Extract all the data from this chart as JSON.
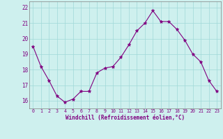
{
  "x": [
    0,
    1,
    2,
    3,
    4,
    5,
    6,
    7,
    8,
    9,
    10,
    11,
    12,
    13,
    14,
    15,
    16,
    17,
    18,
    19,
    20,
    21,
    22,
    23
  ],
  "y": [
    19.5,
    18.2,
    17.3,
    16.3,
    15.9,
    16.1,
    16.6,
    16.6,
    17.8,
    18.1,
    18.2,
    18.8,
    19.6,
    20.5,
    21.0,
    21.8,
    21.1,
    21.1,
    20.6,
    19.9,
    19.0,
    18.5,
    17.3,
    16.6
  ],
  "line_color": "#800080",
  "marker": "*",
  "marker_size": 3.5,
  "bg_color": "#cef0ee",
  "grid_color": "#a0d8d8",
  "xlabel": "Windchill (Refroidissement éolien,°C)",
  "tick_color": "#800080",
  "ylim": [
    15.5,
    22.4
  ],
  "yticks": [
    16,
    17,
    18,
    19,
    20,
    21,
    22
  ],
  "xticks": [
    0,
    1,
    2,
    3,
    4,
    5,
    6,
    7,
    8,
    9,
    10,
    11,
    12,
    13,
    14,
    15,
    16,
    17,
    18,
    19,
    20,
    21,
    22,
    23
  ],
  "xlim": [
    -0.5,
    23.5
  ]
}
